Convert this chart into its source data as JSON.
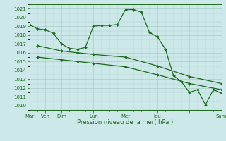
{
  "xlabel": "Pression niveau de la mer( hPa )",
  "ylim": [
    1009.5,
    1021.5
  ],
  "yticks": [
    1010,
    1011,
    1012,
    1013,
    1014,
    1015,
    1016,
    1017,
    1018,
    1019,
    1020,
    1021
  ],
  "bg_color": "#cce8e8",
  "grid_color": "#aacccc",
  "line_color": "#1a6b1a",
  "line1": {
    "x": [
      0,
      1,
      2,
      3,
      4,
      5,
      6,
      7,
      8,
      9,
      10,
      11,
      12,
      13,
      14,
      15,
      16,
      17,
      18,
      19,
      20,
      21,
      22,
      23,
      24
    ],
    "y": [
      1019.2,
      1018.7,
      1018.6,
      1018.2,
      1017.0,
      1016.5,
      1016.4,
      1016.6,
      1019.0,
      1019.1,
      1019.1,
      1019.2,
      1020.9,
      1020.9,
      1020.6,
      1018.3,
      1017.8,
      1016.4,
      1013.4,
      1012.7,
      1011.5,
      1011.8,
      1010.1,
      1011.8,
      1011.4
    ]
  },
  "line2": {
    "x": [
      1,
      4,
      6,
      8,
      12,
      16,
      20,
      24
    ],
    "y": [
      1016.8,
      1016.2,
      1016.0,
      1015.8,
      1015.5,
      1014.5,
      1013.3,
      1012.5
    ]
  },
  "line3": {
    "x": [
      1,
      4,
      6,
      8,
      12,
      16,
      20,
      24
    ],
    "y": [
      1015.5,
      1015.2,
      1015.0,
      1014.8,
      1014.4,
      1013.5,
      1012.5,
      1011.8
    ]
  },
  "day_major_pos": [
    0,
    2,
    4,
    8,
    12,
    16,
    20,
    24
  ],
  "day_major_labels": [
    "Mar",
    "Ven",
    "Dim",
    "Lun",
    "Mer",
    "Jeu",
    "",
    "Sam"
  ],
  "minor_x": [
    0,
    1,
    2,
    3,
    4,
    5,
    6,
    7,
    8,
    9,
    10,
    11,
    12,
    13,
    14,
    15,
    16,
    17,
    18,
    19,
    20,
    21,
    22,
    23,
    24
  ]
}
